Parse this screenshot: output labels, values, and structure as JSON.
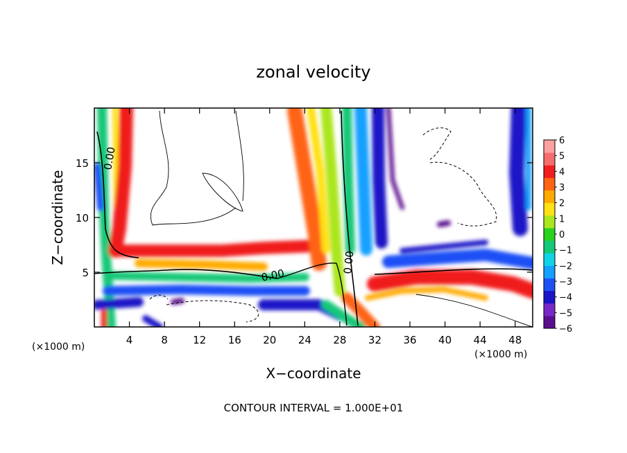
{
  "chart_data": {
    "type": "heatmap",
    "title": "zonal velocity",
    "xlabel": "X−coordinate",
    "ylabel": "Z−coordinate",
    "x_unit": "(×1000 m)",
    "y_unit": "(×1000 m)",
    "footer": "CONTOUR INTERVAL = 1.000E+01",
    "contour_label": "0.00",
    "xlim": [
      0,
      50
    ],
    "ylim": [
      0,
      20
    ],
    "xticks": [
      {
        "v": 4,
        "label": "4"
      },
      {
        "v": 8,
        "label": "8"
      },
      {
        "v": 12,
        "label": "12"
      },
      {
        "v": 16,
        "label": "16"
      },
      {
        "v": 20,
        "label": "20"
      },
      {
        "v": 24,
        "label": "24"
      },
      {
        "v": 28,
        "label": "28"
      },
      {
        "v": 32,
        "label": "32"
      },
      {
        "v": 36,
        "label": "36"
      },
      {
        "v": 40,
        "label": "40"
      },
      {
        "v": 44,
        "label": "44"
      },
      {
        "v": 48,
        "label": "48"
      }
    ],
    "yticks": [
      {
        "v": 5,
        "label": "5"
      },
      {
        "v": 10,
        "label": "10"
      },
      {
        "v": 15,
        "label": "15"
      }
    ],
    "colorbar": {
      "min": -6,
      "max": 6,
      "labels": [
        "6",
        "5",
        "4",
        "3",
        "2",
        "1",
        "0",
        "−1",
        "−2",
        "−3",
        "−4",
        "−5",
        "−6"
      ],
      "colors": [
        "#5b0f8f",
        "#7a28c8",
        "#1a14c8",
        "#1e50f5",
        "#14a0ff",
        "#12d2e6",
        "#14c878",
        "#28d21e",
        "#aae61e",
        "#ffe114",
        "#ffaa00",
        "#ff6414",
        "#f01e1e",
        "#f56e6e",
        "#ffa0a0"
      ]
    }
  }
}
